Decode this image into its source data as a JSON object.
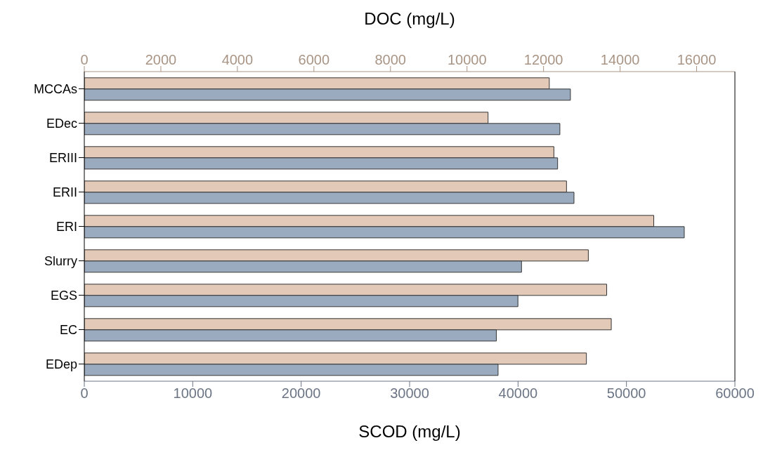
{
  "chart_data": {
    "type": "bar",
    "orientation": "horizontal",
    "xlabel": "SCOD (mg/L)",
    "x2label": "DOC (mg/L)",
    "categories": [
      "MCCAs",
      "EDec",
      "ERIII",
      "ERII",
      "ERI",
      "Slurry",
      "EGS",
      "EC",
      "EDep"
    ],
    "series": [
      {
        "color": "#e3cab8",
        "axis": "x2",
        "values": [
          12150,
          10550,
          12270,
          12600,
          14880,
          13170,
          13650,
          13770,
          13120
        ]
      },
      {
        "color": "#9aabbf",
        "values": [
          44830,
          43860,
          43650,
          45160,
          55330,
          40320,
          39990,
          38000,
          38160
        ]
      }
    ],
    "xlim": [
      0,
      60000
    ],
    "xticks": [
      0,
      10000,
      20000,
      30000,
      40000,
      50000,
      60000
    ],
    "x2lim": [
      0,
      17000
    ],
    "x2ticks": [
      0,
      2000,
      4000,
      6000,
      8000,
      10000,
      12000,
      14000,
      16000
    ],
    "grid": false,
    "legend": false
  }
}
